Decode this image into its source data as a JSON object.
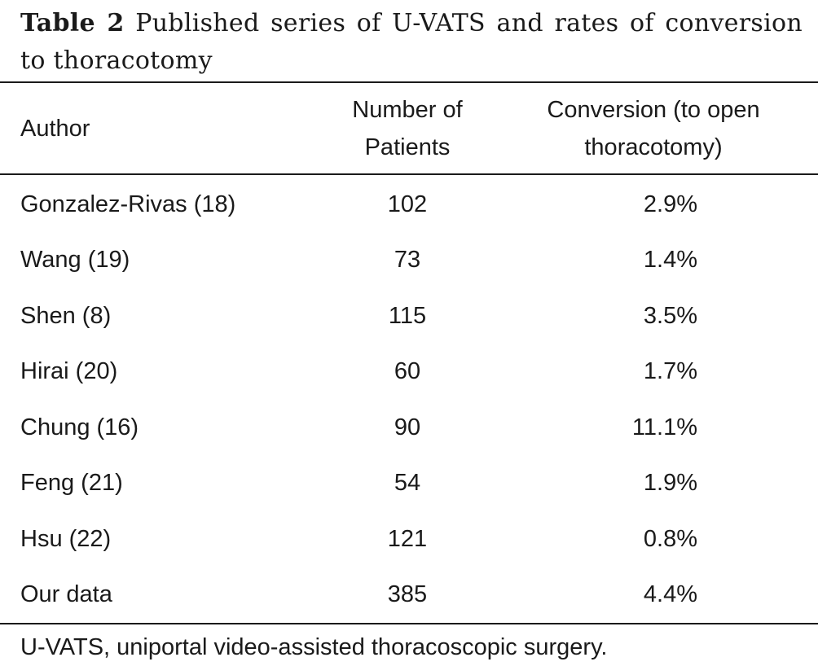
{
  "caption": {
    "label": "Table 2",
    "text": "Published series of U-VATS and rates of conversion to thoracotomy"
  },
  "table": {
    "headers": {
      "author": "Author",
      "patients_line1": "Number of",
      "patients_line2": "Patients",
      "conversion_line1": "Conversion (to open",
      "conversion_line2": "thoracotomy)"
    },
    "rows": [
      {
        "author": "Gonzalez-Rivas (18)",
        "patients": "102",
        "conversion": "2.9%"
      },
      {
        "author": "Wang (19)",
        "patients": "73",
        "conversion": "1.4%"
      },
      {
        "author": "Shen (8)",
        "patients": "115",
        "conversion": "3.5%"
      },
      {
        "author": "Hirai (20)",
        "patients": "60",
        "conversion": "1.7%"
      },
      {
        "author": "Chung (16)",
        "patients": "90",
        "conversion": "11.1%"
      },
      {
        "author": "Feng (21)",
        "patients": "54",
        "conversion": "1.9%"
      },
      {
        "author": "Hsu (22)",
        "patients": "121",
        "conversion": "0.8%"
      },
      {
        "author": "Our data",
        "patients": "385",
        "conversion": "4.4%"
      }
    ]
  },
  "footnote": "U-VATS, uniportal video-assisted thoracoscopic surgery."
}
